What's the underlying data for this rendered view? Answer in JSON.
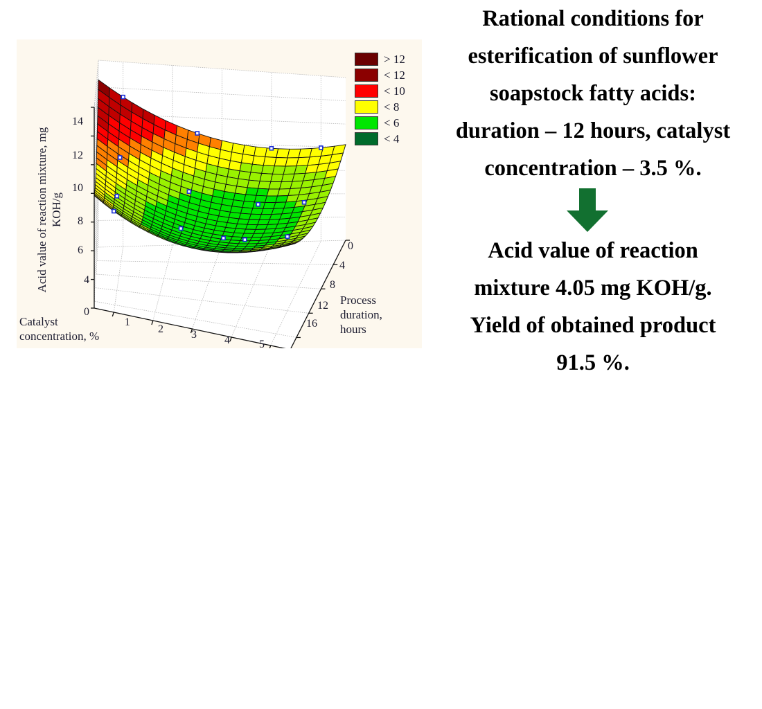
{
  "chart_data": {
    "type": "surface3d",
    "title": "",
    "xlabel": "Catalyst concentration, %",
    "ylabel": "Process duration, hours",
    "zlabel": "Acid value of reaction mixture, mg KOH/g",
    "x_ticks": [
      "1",
      "2",
      "3",
      "4",
      "5"
    ],
    "y_ticks": [
      "0",
      "4",
      "8",
      "12",
      "16"
    ],
    "z_ticks": [
      "0",
      "4",
      "6",
      "8",
      "10",
      "12",
      "14"
    ],
    "xlim": [
      0.5,
      5.5
    ],
    "ylim": [
      0,
      18
    ],
    "zlim": [
      0,
      14
    ],
    "grid": true,
    "legend_position": "upper-right",
    "legend": [
      {
        "label": "> 12",
        "color": "#6b0000"
      },
      {
        "label": "< 12",
        "color": "#8b0000"
      },
      {
        "label": "< 10",
        "color": "#ff0000"
      },
      {
        "label": "< 8",
        "color": "#ffff00"
      },
      {
        "label": "< 6",
        "color": "#00e600"
      },
      {
        "label": "< 4",
        "color": "#006b2b"
      }
    ],
    "surface_band_colors": [
      "#006b2b",
      "#009a1a",
      "#00e600",
      "#99f200",
      "#ffff00",
      "#ff8000",
      "#ff0000",
      "#c00000",
      "#8b0000"
    ],
    "observed_points": [
      {
        "catalyst": 1,
        "duration": 0,
        "acid_value": 12.9
      },
      {
        "catalyst": 1,
        "duration": 6,
        "acid_value": 9.9
      },
      {
        "catalyst": 1,
        "duration": 12,
        "acid_value": 7.6
      },
      {
        "catalyst": 1,
        "duration": 18,
        "acid_value": 5.6
      },
      {
        "catalyst": 2.5,
        "duration": 0,
        "acid_value": 10.5
      },
      {
        "catalyst": 2.5,
        "duration": 6,
        "acid_value": 7.7
      },
      {
        "catalyst": 2.5,
        "duration": 12,
        "acid_value": 5.8
      },
      {
        "catalyst": 3.5,
        "duration": 12,
        "acid_value": 4.05
      },
      {
        "catalyst": 4,
        "duration": 0,
        "acid_value": 8.4
      },
      {
        "catalyst": 4,
        "duration": 6,
        "acid_value": 6.6
      },
      {
        "catalyst": 4,
        "duration": 12,
        "acid_value": 4.6
      },
      {
        "catalyst": 5,
        "duration": 0,
        "acid_value": 8.1
      },
      {
        "catalyst": 5,
        "duration": 6,
        "acid_value": 6.9
      },
      {
        "catalyst": 5,
        "duration": 12,
        "acid_value": 5.3
      }
    ]
  },
  "conditions": {
    "lines": [
      "Rational conditions for",
      "esterification of sunflower",
      "soapstock fatty acids:",
      "duration – 12 hours, catalyst",
      "concentration – 3.5 %."
    ]
  },
  "arrow": {
    "icon": "arrow-down-icon",
    "color": "#127030"
  },
  "result": {
    "lines": [
      "Acid value of reaction",
      "mixture 4.05 mg KOH/g.",
      "Yield of obtained product",
      "91.5 %."
    ]
  }
}
